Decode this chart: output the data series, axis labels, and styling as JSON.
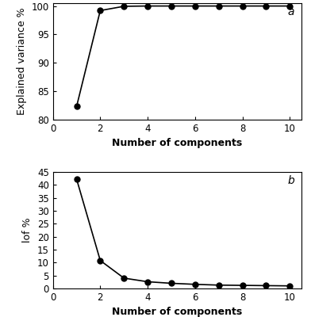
{
  "components": [
    1,
    2,
    3,
    4,
    5,
    6,
    7,
    8,
    9,
    10
  ],
  "explained_variance": [
    82.3,
    99.2,
    99.95,
    100.0,
    100.0,
    100.0,
    100.0,
    100.0,
    100.0,
    100.0
  ],
  "lof": [
    42.3,
    10.8,
    4.0,
    2.6,
    2.0,
    1.6,
    1.3,
    1.2,
    1.1,
    1.0
  ],
  "ev_ylim": [
    80,
    100.5
  ],
  "ev_yticks": [
    80,
    85,
    90,
    95,
    100
  ],
  "lof_ylim": [
    0,
    45
  ],
  "lof_yticks": [
    0,
    5,
    10,
    15,
    20,
    25,
    30,
    35,
    40,
    45
  ],
  "xlim": [
    0,
    10.5
  ],
  "xticks": [
    0,
    2,
    4,
    6,
    8,
    10
  ],
  "xlabel": "Number of components",
  "ylabel_top": "Explained variance %",
  "ylabel_bottom": "lof %",
  "label_a": "a",
  "label_b": "b",
  "line_color": "#000000",
  "marker": "o",
  "marker_color": "#000000",
  "marker_size": 5,
  "line_width": 1.2,
  "font_size_label": 9,
  "font_size_tick": 8.5,
  "font_size_tag": 10,
  "background_color": "#ffffff"
}
